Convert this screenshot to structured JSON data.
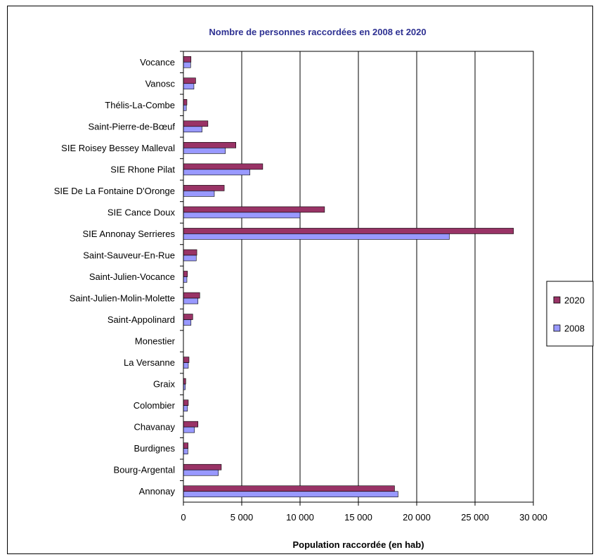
{
  "chart_data": {
    "type": "bar",
    "orientation": "horizontal",
    "title": "Nombre de personnes raccordées en 2008 et 2020",
    "xlabel": "Population raccordée (en hab)",
    "ylabel": "",
    "xlim": [
      0,
      30000
    ],
    "x_ticks": [
      0,
      5000,
      10000,
      15000,
      20000,
      25000,
      30000
    ],
    "x_tick_labels": [
      "0",
      "5 000",
      "10 000",
      "15 000",
      "20 000",
      "25 000",
      "30 000"
    ],
    "grid": "vertical major gridlines",
    "legend_position": "right",
    "categories": [
      "Vocance",
      "Vanosc",
      "Thélis-La-Combe",
      "Saint-Pierre-de-Bœuf",
      "SIE Roisey Bessey Malleval",
      "SIE Rhone Pilat",
      "SIE De La Fontaine D'Oronge",
      "SIE Cance Doux",
      "SIE Annonay Serrieres",
      "Saint-Sauveur-En-Rue",
      "Saint-Julien-Vocance",
      "Saint-Julien-Molin-Molette",
      "Saint-Appolinard",
      "Monestier",
      "La Versanne",
      "Graix",
      "Colombier",
      "Chavanay",
      "Burdignes",
      "Bourg-Argental",
      "Annonay"
    ],
    "series": [
      {
        "name": "2020",
        "color": "#993366",
        "values": [
          650,
          1050,
          300,
          2100,
          4500,
          6800,
          3500,
          12100,
          28300,
          1150,
          350,
          1400,
          800,
          0,
          480,
          200,
          420,
          1250,
          400,
          3250,
          18100
        ]
      },
      {
        "name": "2008",
        "color": "#9999ff",
        "values": [
          620,
          900,
          250,
          1600,
          3600,
          5700,
          2650,
          10000,
          22800,
          1100,
          300,
          1250,
          650,
          0,
          420,
          160,
          350,
          950,
          380,
          3000,
          18400
        ]
      }
    ]
  }
}
